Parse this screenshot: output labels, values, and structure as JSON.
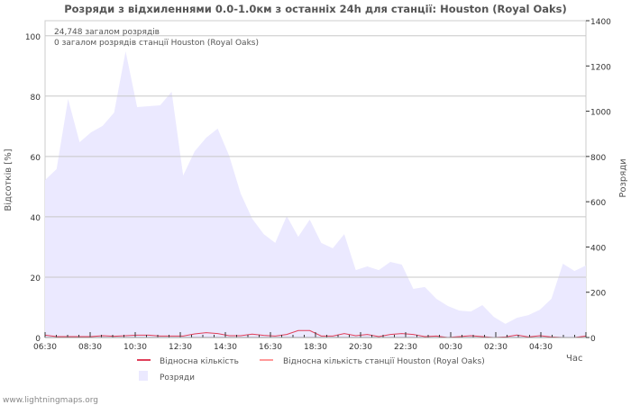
{
  "chart_data": {
    "type": "area",
    "title": "Розряди з відхиленнями 0.0-1.0км з останніх 24h для станції: Houston (Royal Oaks)",
    "ylabel_left": "Відсотків   [%]",
    "ylabel_right": "Розряди",
    "xlabel": "Час",
    "ylim_left": [
      0,
      105
    ],
    "ylim_right": [
      0,
      1400
    ],
    "yticks_left": [
      "0",
      "20",
      "40",
      "60",
      "80",
      "100"
    ],
    "yticks_right": [
      "0",
      "200",
      "400",
      "600",
      "800",
      "1000",
      "1200",
      "1400"
    ],
    "xticks": [
      "06:30",
      "08:30",
      "10:30",
      "12:30",
      "14:30",
      "16:30",
      "18:30",
      "20:30",
      "22:30",
      "00:30",
      "02:30",
      "04:30"
    ],
    "annotations": [
      "24,748 загалом розрядів",
      "0 загалом розрядів станції Houston (Royal Oaks)"
    ],
    "legend": [
      "Відносна кількість",
      "Відносна кількість станції Houston (Royal Oaks)",
      "Розряди"
    ],
    "series": [
      {
        "name": "Розряди",
        "color": "#ebe9ff",
        "values": [
          696,
          744,
          1054,
          863,
          907,
          935,
          994,
          1265,
          1018,
          1022,
          1026,
          1086,
          716,
          823,
          883,
          923,
          803,
          636,
          525,
          457,
          418,
          537,
          445,
          521,
          418,
          394,
          457,
          298,
          314,
          298,
          334,
          322,
          215,
          223,
          171,
          139,
          119,
          115,
          143,
          91,
          60,
          87,
          99,
          123,
          171,
          326,
          294,
          318
        ]
      },
      {
        "name": "Відносна кількість",
        "color": "#e0405a",
        "values": [
          0.8,
          0.3,
          0.3,
          0.3,
          0.3,
          0.6,
          0.4,
          0.6,
          0.8,
          0.8,
          0.5,
          0.5,
          0.5,
          1.2,
          1.6,
          1.3,
          0.6,
          0.6,
          1.1,
          0.7,
          0.5,
          1.0,
          2.3,
          2.3,
          0.5,
          0.5,
          1.3,
          0.6,
          1.0,
          0.3,
          1.0,
          1.3,
          1.0,
          0.3,
          0.5,
          0,
          0.3,
          0.6,
          0.3,
          0,
          0.2,
          0.8,
          0.2,
          0.6,
          0.2,
          0,
          0,
          0.5
        ]
      },
      {
        "name": "Відносна кількість станції Houston (Royal Oaks)",
        "color": "#ff9a9a",
        "values": []
      }
    ]
  },
  "footer": "www.lightningmaps.org"
}
